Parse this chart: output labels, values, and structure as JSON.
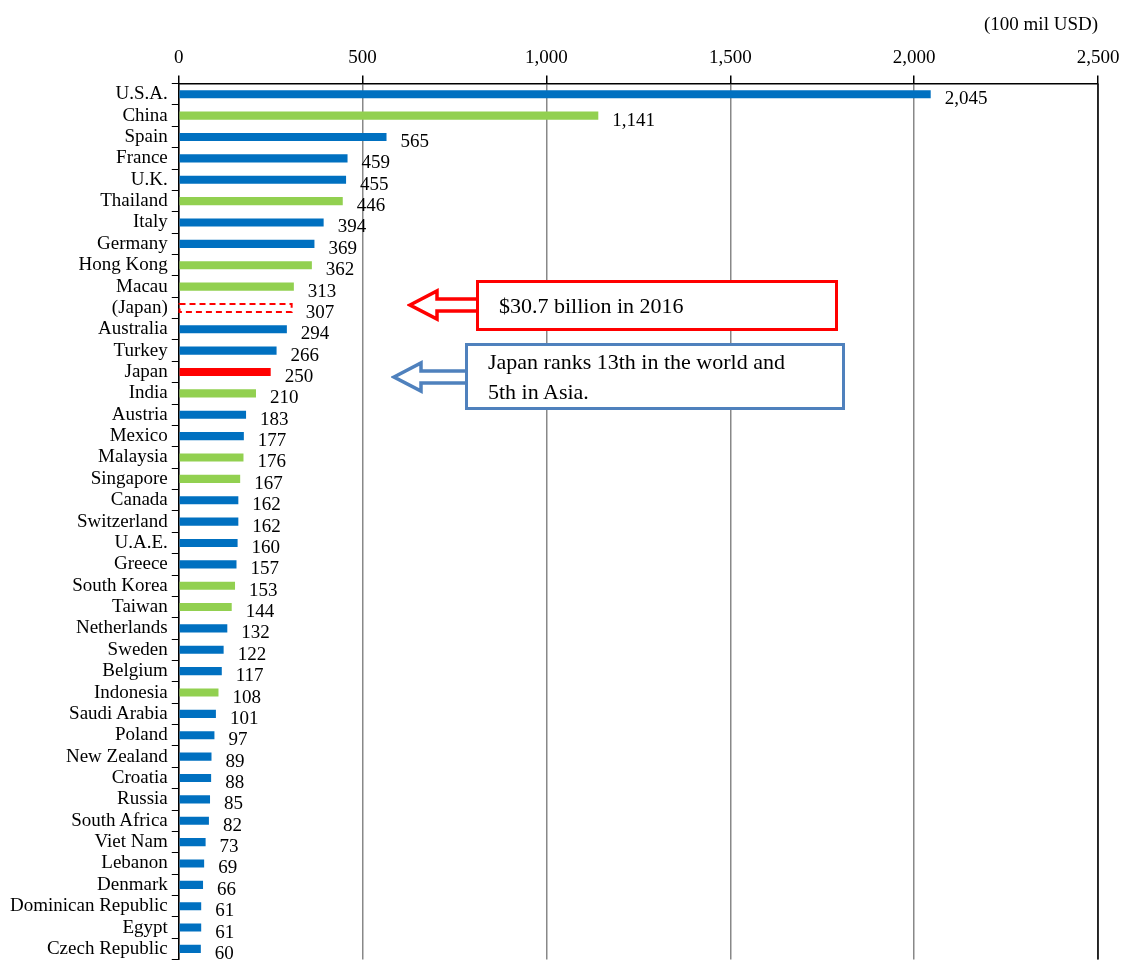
{
  "chart_data": {
    "type": "bar",
    "orientation": "horizontal",
    "stacked": true,
    "xlabel": "(100 mil USD)",
    "categories": [
      "U.S.A.",
      "China",
      "Spain",
      "France",
      "U.K.",
      "Thailand",
      "Italy",
      "Germany",
      "Hong Kong",
      "Macau",
      "(Japan)",
      "Australia",
      "Turkey",
      "Japan",
      "India",
      "Austria",
      "Mexico",
      "Malaysia",
      "Singapore",
      "Canada",
      "Switzerland",
      "U.A.E.",
      "Greece",
      "South Korea",
      "Taiwan",
      "Netherlands",
      "Sweden",
      "Belgium",
      "Indonesia",
      "Saudi Arabia",
      "Poland",
      "New Zealand",
      "Croatia",
      "Russia",
      "South Africa",
      "Viet Nam",
      "Lebanon",
      "Denmark",
      "Dominican Republic",
      "Egypt",
      "Czech Republic"
    ],
    "series": [
      {
        "color": "#0070c0",
        "colors": [
          "#0070c0",
          "#92d050",
          "#0070c0",
          "#0070c0",
          "#0070c0",
          "#92d050",
          "#0070c0",
          "#0070c0",
          "#92d050",
          "#92d050",
          null,
          "#0070c0",
          "#0070c0",
          "#ff0000",
          "#92d050",
          "#0070c0",
          "#0070c0",
          "#92d050",
          "#92d050",
          "#0070c0",
          "#0070c0",
          "#0070c0",
          "#0070c0",
          "#92d050",
          "#92d050",
          "#0070c0",
          "#0070c0",
          "#0070c0",
          "#92d050",
          "#0070c0",
          "#0070c0",
          "#0070c0",
          "#0070c0",
          "#0070c0",
          "#0070c0",
          "#0070c0",
          "#0070c0",
          "#0070c0",
          "#0070c0",
          "#0070c0",
          "#0070c0"
        ],
        "values": [
          2045,
          1141,
          565,
          459,
          455,
          446,
          394,
          369,
          362,
          313,
          null,
          294,
          266,
          250,
          210,
          183,
          177,
          176,
          167,
          162,
          162,
          160,
          157,
          153,
          144,
          132,
          122,
          117,
          108,
          101,
          97,
          89,
          88,
          85,
          82,
          73,
          69,
          66,
          61,
          61,
          60
        ],
        "value_labels": [
          "2,045",
          "1,141",
          "565",
          "459",
          "455",
          "446",
          "394",
          "369",
          "362",
          "313",
          null,
          "294",
          "266",
          "250",
          "210",
          "183",
          "177",
          "176",
          "167",
          "162",
          "162",
          "160",
          "157",
          "153",
          "144",
          "132",
          "122",
          "117",
          "108",
          "101",
          "97",
          "89",
          "88",
          "85",
          "82",
          "73",
          "69",
          "66",
          "61",
          "61",
          "60"
        ]
      },
      {
        "color": "#ff0000",
        "line_style": "dashed",
        "values": [
          null,
          null,
          null,
          null,
          null,
          null,
          null,
          null,
          null,
          null,
          307,
          null,
          null,
          null,
          null,
          null,
          null,
          null,
          null,
          null,
          null,
          null,
          null,
          null,
          null,
          null,
          null,
          null,
          null,
          null,
          null,
          null,
          null,
          null,
          null,
          null,
          null,
          null,
          null,
          null,
          null
        ],
        "value_labels": [
          null,
          null,
          null,
          null,
          null,
          null,
          null,
          null,
          null,
          null,
          "307",
          null,
          null,
          null,
          null,
          null,
          null,
          null,
          null,
          null,
          null,
          null,
          null,
          null,
          null,
          null,
          null,
          null,
          null,
          null,
          null,
          null,
          null,
          null,
          null,
          null,
          null,
          null,
          null,
          null,
          null
        ]
      }
    ],
    "xlim": [
      0,
      2500
    ],
    "xticks": [
      0,
      500,
      {
        "value": 1000,
        "label": "1,000"
      },
      {
        "value": 1500,
        "label": "1,500"
      },
      {
        "value": 2000,
        "label": "2,000"
      },
      {
        "value": 2500,
        "label": "2,500"
      }
    ],
    "grid": "x",
    "annotations": [
      "$30.7 billion in 2016",
      "Japan ranks 13th in the world and 5th in Asia."
    ]
  }
}
